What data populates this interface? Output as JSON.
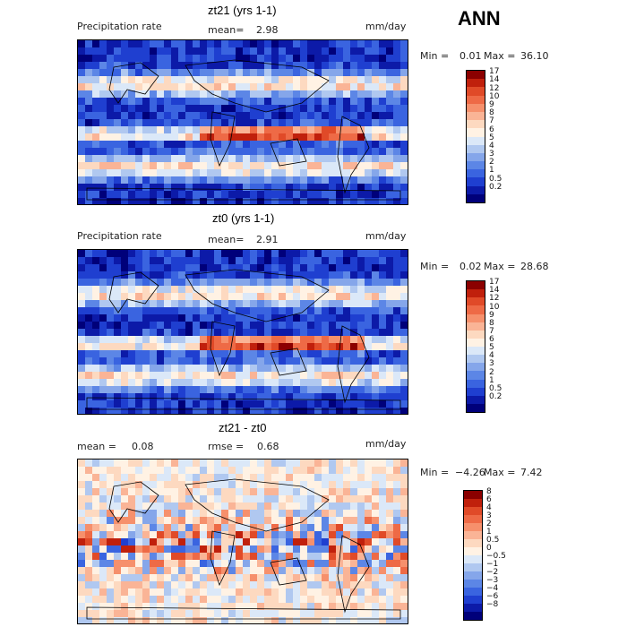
{
  "header": {
    "season": "ANN"
  },
  "units": "mm/day",
  "panels": [
    {
      "title": "zt21 (yrs 1-1)",
      "field": "Precipitation rate",
      "mean_label": "mean=",
      "mean": "2.98",
      "min_label": "Min =",
      "min": "0.01",
      "max_label": "Max =",
      "max": "36.10"
    },
    {
      "title": "zt0 (yrs 1-1)",
      "field": "Precipitation rate",
      "mean_label": "mean=",
      "mean": "2.91",
      "min_label": "Min =",
      "min": "0.02",
      "max_label": "Max =",
      "max": "28.68"
    },
    {
      "title": "zt21 - zt0",
      "mean_label": "mean =",
      "mean": "0.08",
      "rmse_label": "rmse =",
      "rmse": "0.68",
      "min_label": "Min =",
      "min": "−4.26",
      "max_label": "Max =",
      "max": "7.42"
    }
  ],
  "chart_data": [
    {
      "type": "heatmap",
      "title": "zt21 (yrs 1-1)",
      "subtitle": "Precipitation rate",
      "units": "mm/day",
      "stats": {
        "mean": 2.98,
        "min": 0.01,
        "max": 36.1
      },
      "colorbar_levels": [
        "17",
        "14",
        "12",
        "10",
        "9",
        "8",
        "7",
        "6",
        "5",
        "4",
        "3",
        "2",
        "1",
        "0.5",
        "0.2"
      ],
      "colorbar_colors": [
        "#8b0000",
        "#c0200c",
        "#e04a28",
        "#ee6a46",
        "#f6906c",
        "#fab496",
        "#fdd9c0",
        "#fff2e4",
        "#dbe8f8",
        "#b0c8f0",
        "#85a6ea",
        "#5c86e6",
        "#3a64e0",
        "#1f3fd0",
        "#0c1aa8",
        "#00007a"
      ]
    },
    {
      "type": "heatmap",
      "title": "zt0 (yrs 1-1)",
      "subtitle": "Precipitation rate",
      "units": "mm/day",
      "stats": {
        "mean": 2.91,
        "min": 0.02,
        "max": 28.68
      },
      "colorbar_levels": [
        "17",
        "14",
        "12",
        "10",
        "9",
        "8",
        "7",
        "6",
        "5",
        "4",
        "3",
        "2",
        "1",
        "0.5",
        "0.2"
      ],
      "colorbar_colors": [
        "#8b0000",
        "#c0200c",
        "#e04a28",
        "#ee6a46",
        "#f6906c",
        "#fab496",
        "#fdd9c0",
        "#fff2e4",
        "#dbe8f8",
        "#b0c8f0",
        "#85a6ea",
        "#5c86e6",
        "#3a64e0",
        "#1f3fd0",
        "#0c1aa8",
        "#00007a"
      ]
    },
    {
      "type": "heatmap",
      "title": "zt21 - zt0",
      "units": "mm/day",
      "stats": {
        "mean": 0.08,
        "rmse": 0.68,
        "min": -4.26,
        "max": 7.42
      },
      "colorbar_levels": [
        "8",
        "6",
        "4",
        "3",
        "2",
        "1",
        "0.5",
        "0",
        "−0.5",
        "−1",
        "−2",
        "−3",
        "−4",
        "−6",
        "−8"
      ],
      "colorbar_colors": [
        "#8b0000",
        "#c0200c",
        "#e04a28",
        "#ee6a46",
        "#f6906c",
        "#fab496",
        "#fdd9c0",
        "#fff2e4",
        "#dbe8f8",
        "#b0c8f0",
        "#85a6ea",
        "#5c86e6",
        "#3a64e0",
        "#1f3fd0",
        "#0c1aa8",
        "#00007a"
      ]
    }
  ]
}
